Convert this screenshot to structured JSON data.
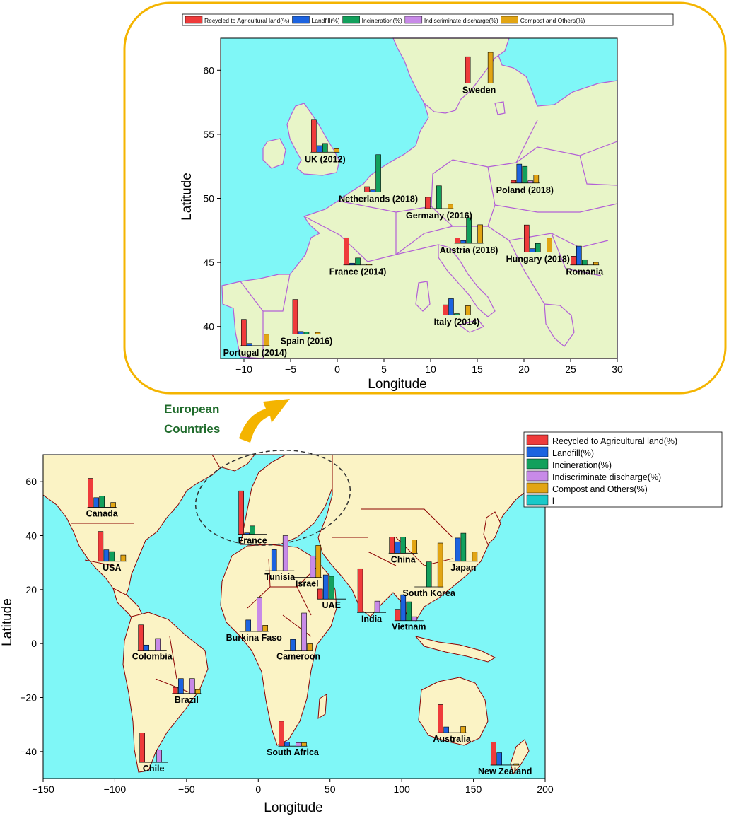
{
  "colors": {
    "sea": "#7ff7f7",
    "land": "#fbf3c5",
    "europe_land": "#e8f5c8",
    "border_world": "#8b0000",
    "border_europe": "#b25fd6",
    "frame": "#f4b400",
    "series": [
      "#ef3b3b",
      "#1c63e0",
      "#12a05c",
      "#c88ae8",
      "#e2a514",
      "#19c9c9"
    ]
  },
  "callout": {
    "label_line1": "European",
    "label_line2": "Countries"
  },
  "chart_data": [
    {
      "id": "europe",
      "type": "bar",
      "xlabel": "Longitude",
      "ylabel": "Latitude",
      "xlim": [
        -12.5,
        30
      ],
      "ylim": [
        37.5,
        62.5
      ],
      "xticks": [
        -10,
        -5,
        0,
        5,
        10,
        15,
        20,
        25,
        30
      ],
      "yticks": [
        40,
        45,
        50,
        55,
        60
      ],
      "legend": {
        "placement": "top",
        "entries": [
          "Recycled to Agricultural  land(%)",
          "Landfill(%)",
          "Incineration(%)",
          "Indiscriminate discharge(%)",
          "Compost and Others(%)"
        ]
      },
      "countries": [
        {
          "name": "Sweden",
          "lon": 15.2,
          "lat": 59.0,
          "values": [
            60,
            0,
            0,
            0,
            70
          ]
        },
        {
          "name": "UK (2012)",
          "lon": -1.3,
          "lat": 53.6,
          "values": [
            75,
            15,
            20,
            0,
            8
          ]
        },
        {
          "name": "Netherlands (2018)",
          "lon": 4.4,
          "lat": 50.5,
          "values": [
            12,
            6,
            85,
            0,
            0
          ]
        },
        {
          "name": "Germany (2016)",
          "lon": 10.9,
          "lat": 49.2,
          "values": [
            26,
            0,
            52,
            0,
            10
          ]
        },
        {
          "name": "Poland (2018)",
          "lon": 20.1,
          "lat": 51.2,
          "values": [
            6,
            43,
            38,
            5,
            18
          ]
        },
        {
          "name": "Austria (2018)",
          "lon": 14.1,
          "lat": 46.5,
          "values": [
            12,
            6,
            58,
            0,
            42
          ]
        },
        {
          "name": "France (2014)",
          "lon": 2.2,
          "lat": 44.8,
          "values": [
            62,
            4,
            16,
            0,
            2
          ]
        },
        {
          "name": "Hungary (2018)",
          "lon": 21.5,
          "lat": 45.8,
          "values": [
            62,
            8,
            20,
            0,
            32
          ]
        },
        {
          "name": "Romania",
          "lon": 26.5,
          "lat": 44.8,
          "values": [
            20,
            43,
            12,
            0,
            6
          ]
        },
        {
          "name": "Italy (2014)",
          "lon": 12.8,
          "lat": 40.9,
          "values": [
            23,
            37,
            3,
            0,
            21
          ]
        },
        {
          "name": "Spain (2016)",
          "lon": -3.3,
          "lat": 39.4,
          "values": [
            79,
            6,
            5,
            0,
            4
          ]
        },
        {
          "name": "Portugal (2014)",
          "lon": -8.8,
          "lat": 38.5,
          "values": [
            60,
            5,
            0,
            0,
            26
          ]
        }
      ]
    },
    {
      "id": "world",
      "type": "bar",
      "xlabel": "Longitude",
      "ylabel": "Latitude",
      "xlim": [
        -150,
        200
      ],
      "ylim": [
        -50,
        70
      ],
      "xticks": [
        -150,
        -100,
        -50,
        0,
        50,
        100,
        150,
        200
      ],
      "yticks": [
        -40,
        -20,
        0,
        20,
        40,
        60
      ],
      "legend": {
        "placement": "right",
        "entries": [
          "Recycled to Agricultural  land(%)",
          "Landfill(%)",
          "Incineration(%)",
          "Indiscriminate discharge(%)",
          "Compost and Others(%)",
          "l"
        ]
      },
      "countries": [
        {
          "name": "Canada",
          "lon": -109,
          "lat": 50.5,
          "values": [
            66,
            22,
            26,
            0,
            11
          ]
        },
        {
          "name": "USA",
          "lon": -102,
          "lat": 30.5,
          "values": [
            68,
            26,
            22,
            0,
            14
          ]
        },
        {
          "name": "France",
          "lon": -4,
          "lat": 40.5,
          "values": [
            99,
            3,
            19,
            0,
            0
          ]
        },
        {
          "name": "Tunisia",
          "lon": 15,
          "lat": 27.0,
          "values": [
            0,
            48,
            0,
            80,
            0
          ]
        },
        {
          "name": "Israel",
          "lon": 34,
          "lat": 24.5,
          "values": [
            0,
            0,
            0,
            49,
            73
          ]
        },
        {
          "name": "UAE",
          "lon": 51,
          "lat": 16.5,
          "values": [
            23,
            55,
            52,
            0,
            0
          ]
        },
        {
          "name": "China",
          "lon": 101,
          "lat": 33.5,
          "values": [
            37,
            26,
            37,
            0,
            30
          ]
        },
        {
          "name": "Japan",
          "lon": 143,
          "lat": 30.5,
          "values": [
            0,
            53,
            64,
            0,
            21
          ]
        },
        {
          "name": "South Korea",
          "lon": 119,
          "lat": 21.0,
          "values": [
            0,
            0,
            57,
            0,
            100
          ]
        },
        {
          "name": "India",
          "lon": 79,
          "lat": 11.5,
          "values": [
            100,
            0,
            0,
            26,
            0
          ]
        },
        {
          "name": "Vietnam",
          "lon": 105,
          "lat": 8.5,
          "values": [
            26,
            59,
            43,
            9,
            0
          ]
        },
        {
          "name": "Burkina Faso",
          "lon": -3,
          "lat": 4.5,
          "values": [
            0,
            26,
            0,
            78,
            14
          ]
        },
        {
          "name": "Cameroon",
          "lon": 28,
          "lat": -2.5,
          "values": [
            0,
            25,
            0,
            85,
            15
          ]
        },
        {
          "name": "Colombia",
          "lon": -74,
          "lat": -2.5,
          "values": [
            58,
            12,
            0,
            27,
            0
          ]
        },
        {
          "name": "Brazil",
          "lon": -50,
          "lat": -18.5,
          "values": [
            14,
            34,
            0,
            34,
            9
          ]
        },
        {
          "name": "Chile",
          "lon": -73,
          "lat": -44.0,
          "values": [
            67,
            0,
            0,
            28,
            0
          ]
        },
        {
          "name": "South Africa",
          "lon": 24,
          "lat": -38.0,
          "values": [
            57,
            9,
            0,
            8,
            8
          ]
        },
        {
          "name": "Australia",
          "lon": 135,
          "lat": -33.0,
          "values": [
            64,
            13,
            0,
            0,
            14
          ]
        },
        {
          "name": "New Zealand",
          "lon": 172,
          "lat": -45.0,
          "values": [
            52,
            28,
            0,
            0,
            3
          ]
        }
      ]
    }
  ]
}
